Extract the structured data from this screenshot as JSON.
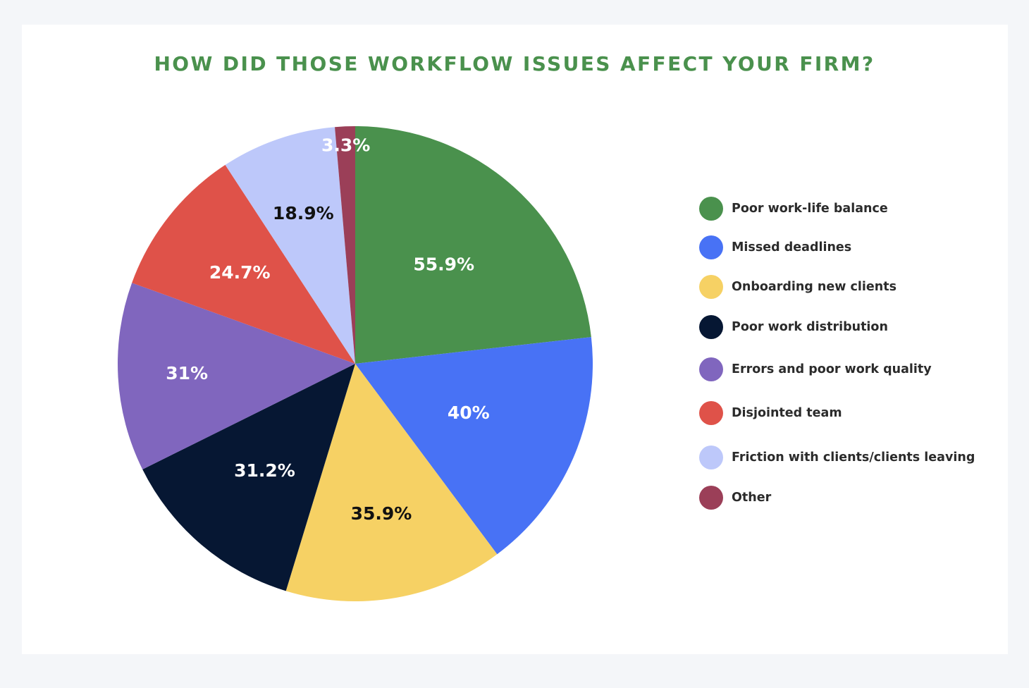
{
  "chart_data": {
    "type": "pie",
    "title": "HOW DID THOSE WORKFLOW ISSUES AFFECT YOUR FIRM?",
    "legend_position": "right",
    "categories": [
      "Poor work-life balance",
      "Missed deadlines",
      "Onboarding new clients",
      "Poor work distribution",
      "Errors and poor work quality",
      "Disjointed team",
      "Friction with clients/clients leaving",
      "Other"
    ],
    "values": [
      55.9,
      40,
      35.9,
      31.2,
      31,
      24.7,
      18.9,
      3.3
    ],
    "value_labels": [
      "55.9%",
      "40%",
      "35.9%",
      "31.2%",
      "31%",
      "24.7%",
      "18.9%",
      "3.3%"
    ],
    "colors": [
      "#4a914d",
      "#4872f5",
      "#f6d164",
      "#061733",
      "#8066be",
      "#df5249",
      "#bdc8fa",
      "#9b3f58"
    ],
    "label_colors": [
      "#ffffff",
      "#ffffff",
      "#111111",
      "#ffffff",
      "#ffffff",
      "#ffffff",
      "#111111",
      "#ffffff"
    ]
  }
}
